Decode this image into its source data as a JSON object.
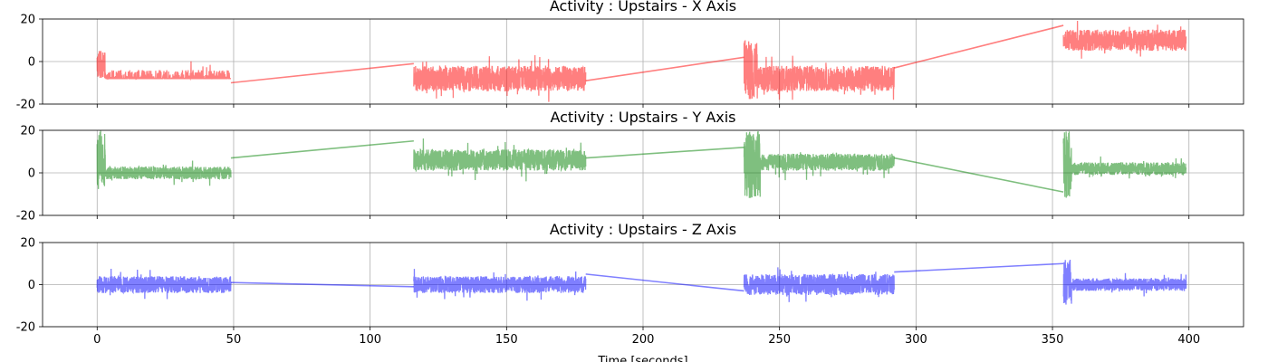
{
  "xlabel": "Time [seconds]",
  "chart_data": [
    {
      "type": "line",
      "title": "Activity : Upstairs - X Axis",
      "axis": "x",
      "color": "#ff0000",
      "alpha": 0.5,
      "xlim": [
        -20,
        420
      ],
      "ylim": [
        -20,
        20
      ],
      "xticks": [
        0,
        50,
        100,
        150,
        200,
        250,
        300,
        350,
        400
      ],
      "yticks": [
        -20,
        0,
        20
      ],
      "grid": true,
      "show_xtick_labels": false,
      "segments": [
        {
          "t_start": 0,
          "t_end": 49,
          "mean": -10,
          "amp": 6,
          "spikes": [
            0,
            1,
            2
          ],
          "spike_range": [
            -8,
            5
          ]
        },
        {
          "t_start": 116,
          "t_end": 179,
          "mean": -8,
          "amp": 6,
          "spikes": [],
          "spike_range": [
            -19,
            3
          ]
        },
        {
          "t_start": 237,
          "t_end": 292,
          "mean": -8,
          "amp": 6,
          "spikes": [
            237,
            238,
            239,
            240,
            241
          ],
          "spike_range": [
            -18,
            10
          ]
        },
        {
          "t_start": 354,
          "t_end": 399,
          "mean": 10,
          "amp": 5,
          "spikes": [],
          "spike_range": [
            -4,
            20
          ]
        }
      ],
      "connectors": [
        {
          "x": [
            49,
            116
          ],
          "y": [
            -10,
            -1
          ]
        },
        {
          "x": [
            179,
            237
          ],
          "y": [
            -9,
            2
          ]
        },
        {
          "x": [
            292,
            354
          ],
          "y": [
            -3,
            17
          ]
        }
      ]
    },
    {
      "type": "line",
      "title": "Activity : Upstairs - Y Axis",
      "axis": "y",
      "color": "#008000",
      "alpha": 0.5,
      "xlim": [
        -20,
        420
      ],
      "ylim": [
        -20,
        20
      ],
      "xticks": [
        0,
        50,
        100,
        150,
        200,
        250,
        300,
        350,
        400
      ],
      "yticks": [
        -20,
        0,
        20
      ],
      "grid": true,
      "show_xtick_labels": false,
      "segments": [
        {
          "t_start": 0,
          "t_end": 49,
          "mean": 0,
          "amp": 3,
          "spikes": [
            0,
            1,
            2
          ],
          "spike_range": [
            -8,
            20
          ]
        },
        {
          "t_start": 116,
          "t_end": 179,
          "mean": 6,
          "amp": 5,
          "spikes": [],
          "spike_range": [
            -4,
            20
          ]
        },
        {
          "t_start": 237,
          "t_end": 292,
          "mean": 5,
          "amp": 4,
          "spikes": [
            237,
            238,
            239,
            240,
            241,
            242
          ],
          "spike_range": [
            -12,
            20
          ]
        },
        {
          "t_start": 354,
          "t_end": 399,
          "mean": 2,
          "amp": 3,
          "spikes": [
            354,
            355,
            356
          ],
          "spike_range": [
            -12,
            20
          ]
        }
      ],
      "connectors": [
        {
          "x": [
            49,
            116
          ],
          "y": [
            7,
            15
          ]
        },
        {
          "x": [
            179,
            237
          ],
          "y": [
            7,
            12
          ]
        },
        {
          "x": [
            292,
            354
          ],
          "y": [
            7,
            -9
          ]
        }
      ]
    },
    {
      "type": "line",
      "title": "Activity : Upstairs - Z Axis",
      "axis": "z",
      "color": "#0000ff",
      "alpha": 0.5,
      "xlim": [
        -20,
        420
      ],
      "ylim": [
        -20,
        20
      ],
      "xticks": [
        0,
        50,
        100,
        150,
        200,
        250,
        300,
        350,
        400
      ],
      "yticks": [
        -20,
        0,
        20
      ],
      "grid": true,
      "show_xtick_labels": true,
      "segments": [
        {
          "t_start": 0,
          "t_end": 49,
          "mean": 0,
          "amp": 4,
          "spikes": [],
          "spike_range": [
            -8,
            13
          ]
        },
        {
          "t_start": 116,
          "t_end": 179,
          "mean": 0,
          "amp": 4,
          "spikes": [],
          "spike_range": [
            -12,
            13
          ]
        },
        {
          "t_start": 237,
          "t_end": 292,
          "mean": 0,
          "amp": 5,
          "spikes": [],
          "spike_range": [
            -16,
            17
          ]
        },
        {
          "t_start": 354,
          "t_end": 399,
          "mean": 0,
          "amp": 3,
          "spikes": [
            354,
            355,
            356
          ],
          "spike_range": [
            -10,
            13
          ]
        }
      ],
      "connectors": [
        {
          "x": [
            49,
            116
          ],
          "y": [
            1,
            -1
          ]
        },
        {
          "x": [
            179,
            237
          ],
          "y": [
            5,
            -3
          ]
        },
        {
          "x": [
            292,
            354
          ],
          "y": [
            6,
            10
          ]
        }
      ]
    }
  ]
}
